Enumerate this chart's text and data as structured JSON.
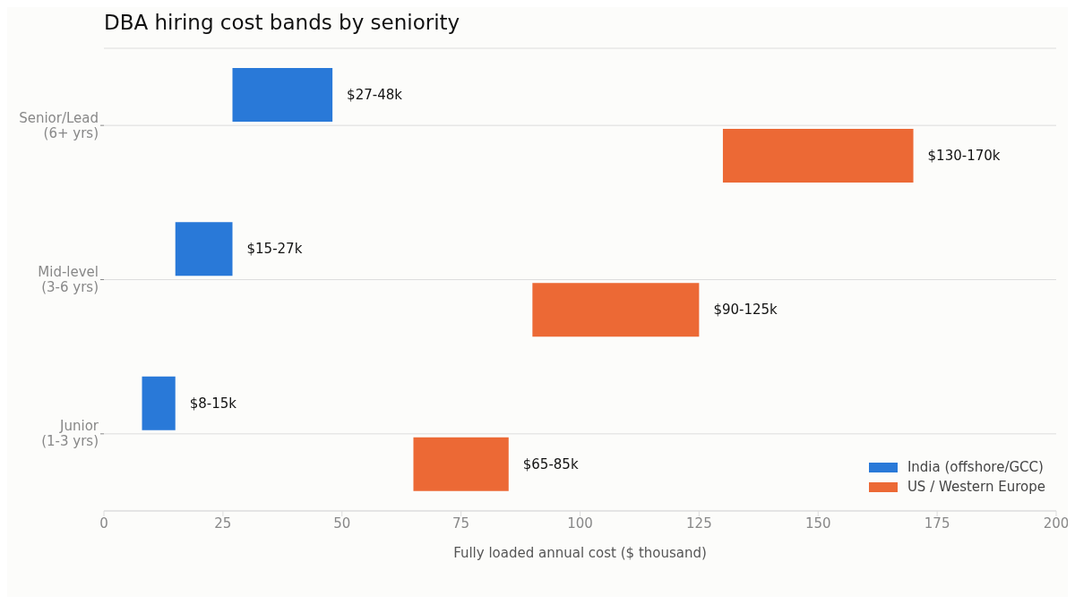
{
  "chart_data": {
    "type": "bar",
    "orientation": "horizontal",
    "title": "DBA hiring cost bands by seniority",
    "xlabel": "Fully loaded annual cost ($ thousand)",
    "categories": [
      "Senior/Lead\n(6+ yrs)",
      "Mid-level\n(3-6 yrs)",
      "Junior\n(1-3 yrs)"
    ],
    "series": [
      {
        "name": "India (offshore/GCC)",
        "color": "#2979d8",
        "base": [
          27,
          15,
          8
        ],
        "values": [
          21,
          12,
          7
        ],
        "value_labels": [
          "$27-48k",
          "$15-27k",
          "$8-15k"
        ]
      },
      {
        "name": "US / Western Europe",
        "color": "#ec6935",
        "base": [
          130,
          90,
          65
        ],
        "values": [
          40,
          35,
          20
        ],
        "value_labels": [
          "$130-170k",
          "$90-125k",
          "$65-85k"
        ]
      }
    ],
    "xlim": [
      0,
      200
    ],
    "xticks": [
      0,
      25,
      50,
      75,
      100,
      125,
      150,
      175,
      200
    ],
    "grid": "y",
    "legend": "bottom right"
  }
}
